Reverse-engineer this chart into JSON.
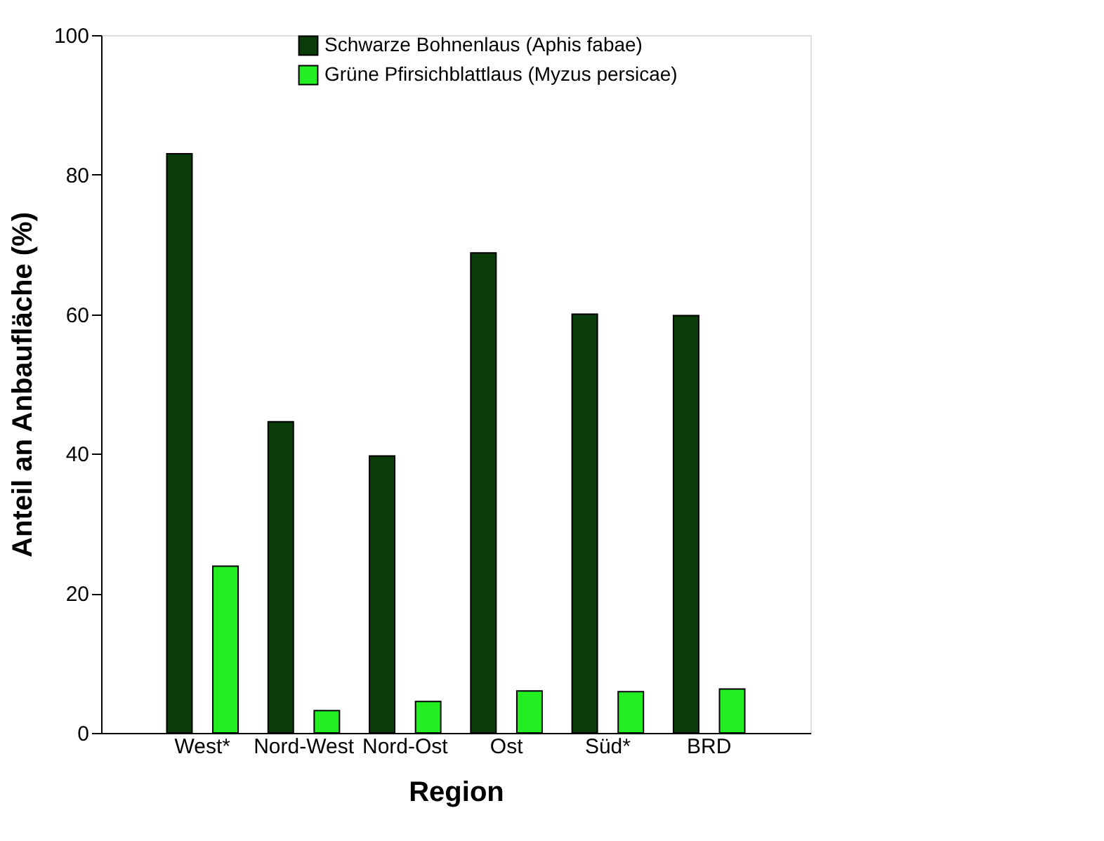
{
  "chart_data": {
    "type": "bar",
    "xlabel": "Region",
    "ylabel": "Anteil an Anbaufläche (%)",
    "categories": [
      "West*",
      "Nord-West",
      "Nord-Ost",
      "Ost",
      "Süd*",
      "BRD"
    ],
    "series": [
      {
        "name": "Schwarze Bohnenlaus (Aphis fabae)",
        "color": "#0b3d0b",
        "values": [
          83,
          44.6,
          39.7,
          68.8,
          60,
          59.8
        ]
      },
      {
        "name": "Grüne Pfirsichblattlaus (Myzus persicae)",
        "color": "#22ee22",
        "values": [
          23.9,
          3.2,
          4.5,
          6,
          5.9,
          6.3
        ]
      }
    ],
    "ylim": [
      0,
      100
    ],
    "yticks": [
      0,
      20,
      40,
      60,
      80,
      100
    ],
    "grid": false,
    "legend": "top"
  }
}
